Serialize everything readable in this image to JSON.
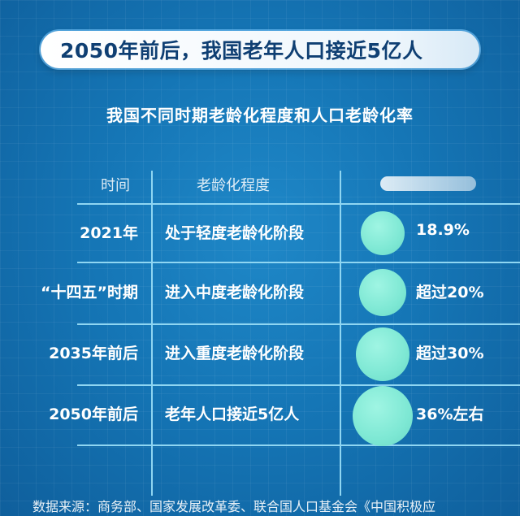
{
  "headline": "2050年前后，我国老年人口接近5亿人",
  "subtitle": "我国不同时期老龄化程度和人口老龄化率",
  "table": {
    "headers": {
      "time": "时间",
      "degree": "老龄化程度"
    },
    "rows": [
      {
        "time": "2021年",
        "degree": "处于轻度老龄化阶段",
        "rate": "18.9%"
      },
      {
        "time": "“十四五”时期",
        "degree": "进入中度老龄化阶段",
        "rate": "超过20%"
      },
      {
        "time": "2035年前后",
        "degree": "进入重度老龄化阶段",
        "rate": "超过30%"
      },
      {
        "time": "2050年前后",
        "degree": "老年人口接近5亿人",
        "rate": "36%左右"
      }
    ]
  },
  "source": "数据来源：商务部、国家发展改革委、联合国人口基金会《中国积极应",
  "colors": {
    "background": "#1576b6",
    "circle": "#7ee8d4",
    "lines": "#8fd6f2",
    "headline_text": "#0f3f73"
  }
}
